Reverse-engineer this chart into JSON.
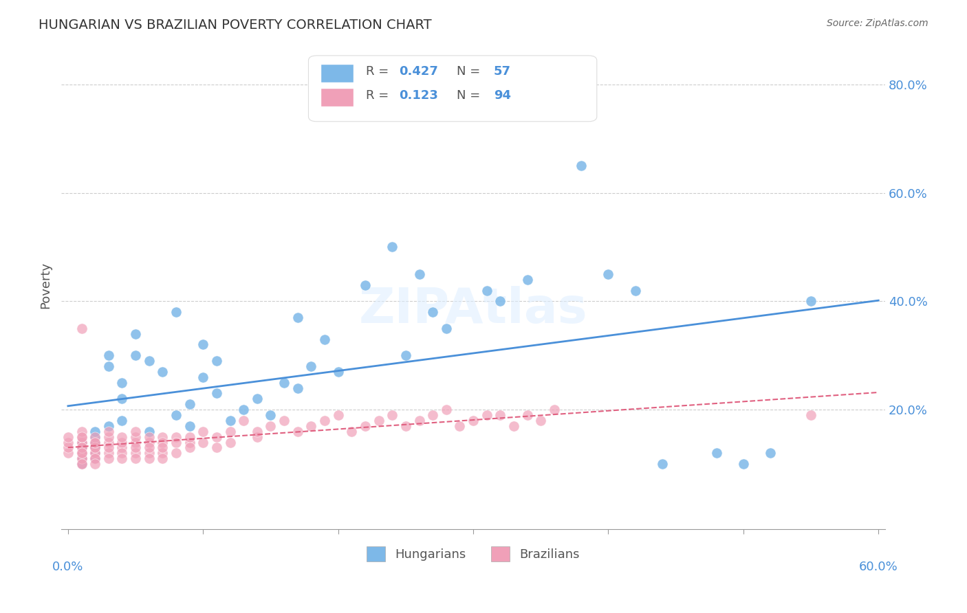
{
  "title": "HUNGARIAN VS BRAZILIAN POVERTY CORRELATION CHART",
  "source": "Source: ZipAtlas.com",
  "ylabel": "Poverty",
  "xlim": [
    0.0,
    0.6
  ],
  "ylim": [
    -0.02,
    0.88
  ],
  "ytick_vals": [
    0.2,
    0.4,
    0.6,
    0.8
  ],
  "ytick_labels": [
    "20.0%",
    "40.0%",
    "60.0%",
    "80.0%"
  ],
  "xtick_vals": [
    0.0,
    0.1,
    0.2,
    0.3,
    0.4,
    0.5,
    0.6
  ],
  "hungarian_color": "#7DB8E8",
  "brazilian_color": "#F0A0B8",
  "hungarian_line_color": "#4A90D9",
  "brazilian_line_color": "#E06080",
  "watermark": "ZIPAtlas",
  "legend_R_hung": "0.427",
  "legend_N_hung": "57",
  "legend_R_braz": "0.123",
  "legend_N_braz": "94",
  "hungarian_x": [
    0.01,
    0.01,
    0.01,
    0.01,
    0.01,
    0.02,
    0.02,
    0.02,
    0.02,
    0.02,
    0.02,
    0.03,
    0.03,
    0.03,
    0.04,
    0.04,
    0.04,
    0.05,
    0.05,
    0.06,
    0.06,
    0.07,
    0.08,
    0.08,
    0.09,
    0.09,
    0.1,
    0.1,
    0.11,
    0.11,
    0.12,
    0.13,
    0.14,
    0.15,
    0.16,
    0.17,
    0.17,
    0.18,
    0.19,
    0.2,
    0.22,
    0.24,
    0.25,
    0.26,
    0.27,
    0.28,
    0.31,
    0.32,
    0.34,
    0.38,
    0.4,
    0.42,
    0.44,
    0.48,
    0.5,
    0.52,
    0.55
  ],
  "hungarian_y": [
    0.14,
    0.11,
    0.12,
    0.13,
    0.1,
    0.15,
    0.13,
    0.14,
    0.12,
    0.11,
    0.16,
    0.3,
    0.28,
    0.17,
    0.18,
    0.25,
    0.22,
    0.3,
    0.34,
    0.16,
    0.29,
    0.27,
    0.19,
    0.38,
    0.17,
    0.21,
    0.26,
    0.32,
    0.23,
    0.29,
    0.18,
    0.2,
    0.22,
    0.19,
    0.25,
    0.24,
    0.37,
    0.28,
    0.33,
    0.27,
    0.43,
    0.5,
    0.3,
    0.45,
    0.38,
    0.35,
    0.42,
    0.4,
    0.44,
    0.65,
    0.45,
    0.42,
    0.1,
    0.12,
    0.1,
    0.12,
    0.4
  ],
  "brazilian_x": [
    0.0,
    0.0,
    0.0,
    0.0,
    0.01,
    0.01,
    0.01,
    0.01,
    0.01,
    0.01,
    0.01,
    0.01,
    0.01,
    0.01,
    0.01,
    0.01,
    0.01,
    0.01,
    0.01,
    0.02,
    0.02,
    0.02,
    0.02,
    0.02,
    0.02,
    0.02,
    0.02,
    0.02,
    0.02,
    0.03,
    0.03,
    0.03,
    0.03,
    0.03,
    0.03,
    0.04,
    0.04,
    0.04,
    0.04,
    0.04,
    0.05,
    0.05,
    0.05,
    0.05,
    0.05,
    0.05,
    0.06,
    0.06,
    0.06,
    0.06,
    0.06,
    0.07,
    0.07,
    0.07,
    0.07,
    0.07,
    0.08,
    0.08,
    0.08,
    0.09,
    0.09,
    0.09,
    0.1,
    0.1,
    0.11,
    0.11,
    0.12,
    0.12,
    0.13,
    0.14,
    0.14,
    0.15,
    0.16,
    0.17,
    0.18,
    0.19,
    0.2,
    0.21,
    0.22,
    0.23,
    0.24,
    0.25,
    0.26,
    0.27,
    0.28,
    0.29,
    0.3,
    0.31,
    0.32,
    0.33,
    0.34,
    0.35,
    0.36,
    0.55
  ],
  "brazilian_y": [
    0.12,
    0.13,
    0.14,
    0.15,
    0.1,
    0.11,
    0.12,
    0.12,
    0.13,
    0.14,
    0.14,
    0.15,
    0.16,
    0.15,
    0.13,
    0.11,
    0.1,
    0.12,
    0.35,
    0.12,
    0.11,
    0.13,
    0.14,
    0.15,
    0.12,
    0.13,
    0.11,
    0.1,
    0.14,
    0.14,
    0.15,
    0.16,
    0.12,
    0.13,
    0.11,
    0.13,
    0.14,
    0.15,
    0.12,
    0.11,
    0.14,
    0.15,
    0.12,
    0.13,
    0.16,
    0.11,
    0.14,
    0.15,
    0.12,
    0.13,
    0.11,
    0.15,
    0.14,
    0.12,
    0.13,
    0.11,
    0.15,
    0.14,
    0.12,
    0.14,
    0.15,
    0.13,
    0.16,
    0.14,
    0.15,
    0.13,
    0.16,
    0.14,
    0.18,
    0.15,
    0.16,
    0.17,
    0.18,
    0.16,
    0.17,
    0.18,
    0.19,
    0.16,
    0.17,
    0.18,
    0.19,
    0.17,
    0.18,
    0.19,
    0.2,
    0.17,
    0.18,
    0.19,
    0.19,
    0.17,
    0.19,
    0.18,
    0.2,
    0.19
  ]
}
